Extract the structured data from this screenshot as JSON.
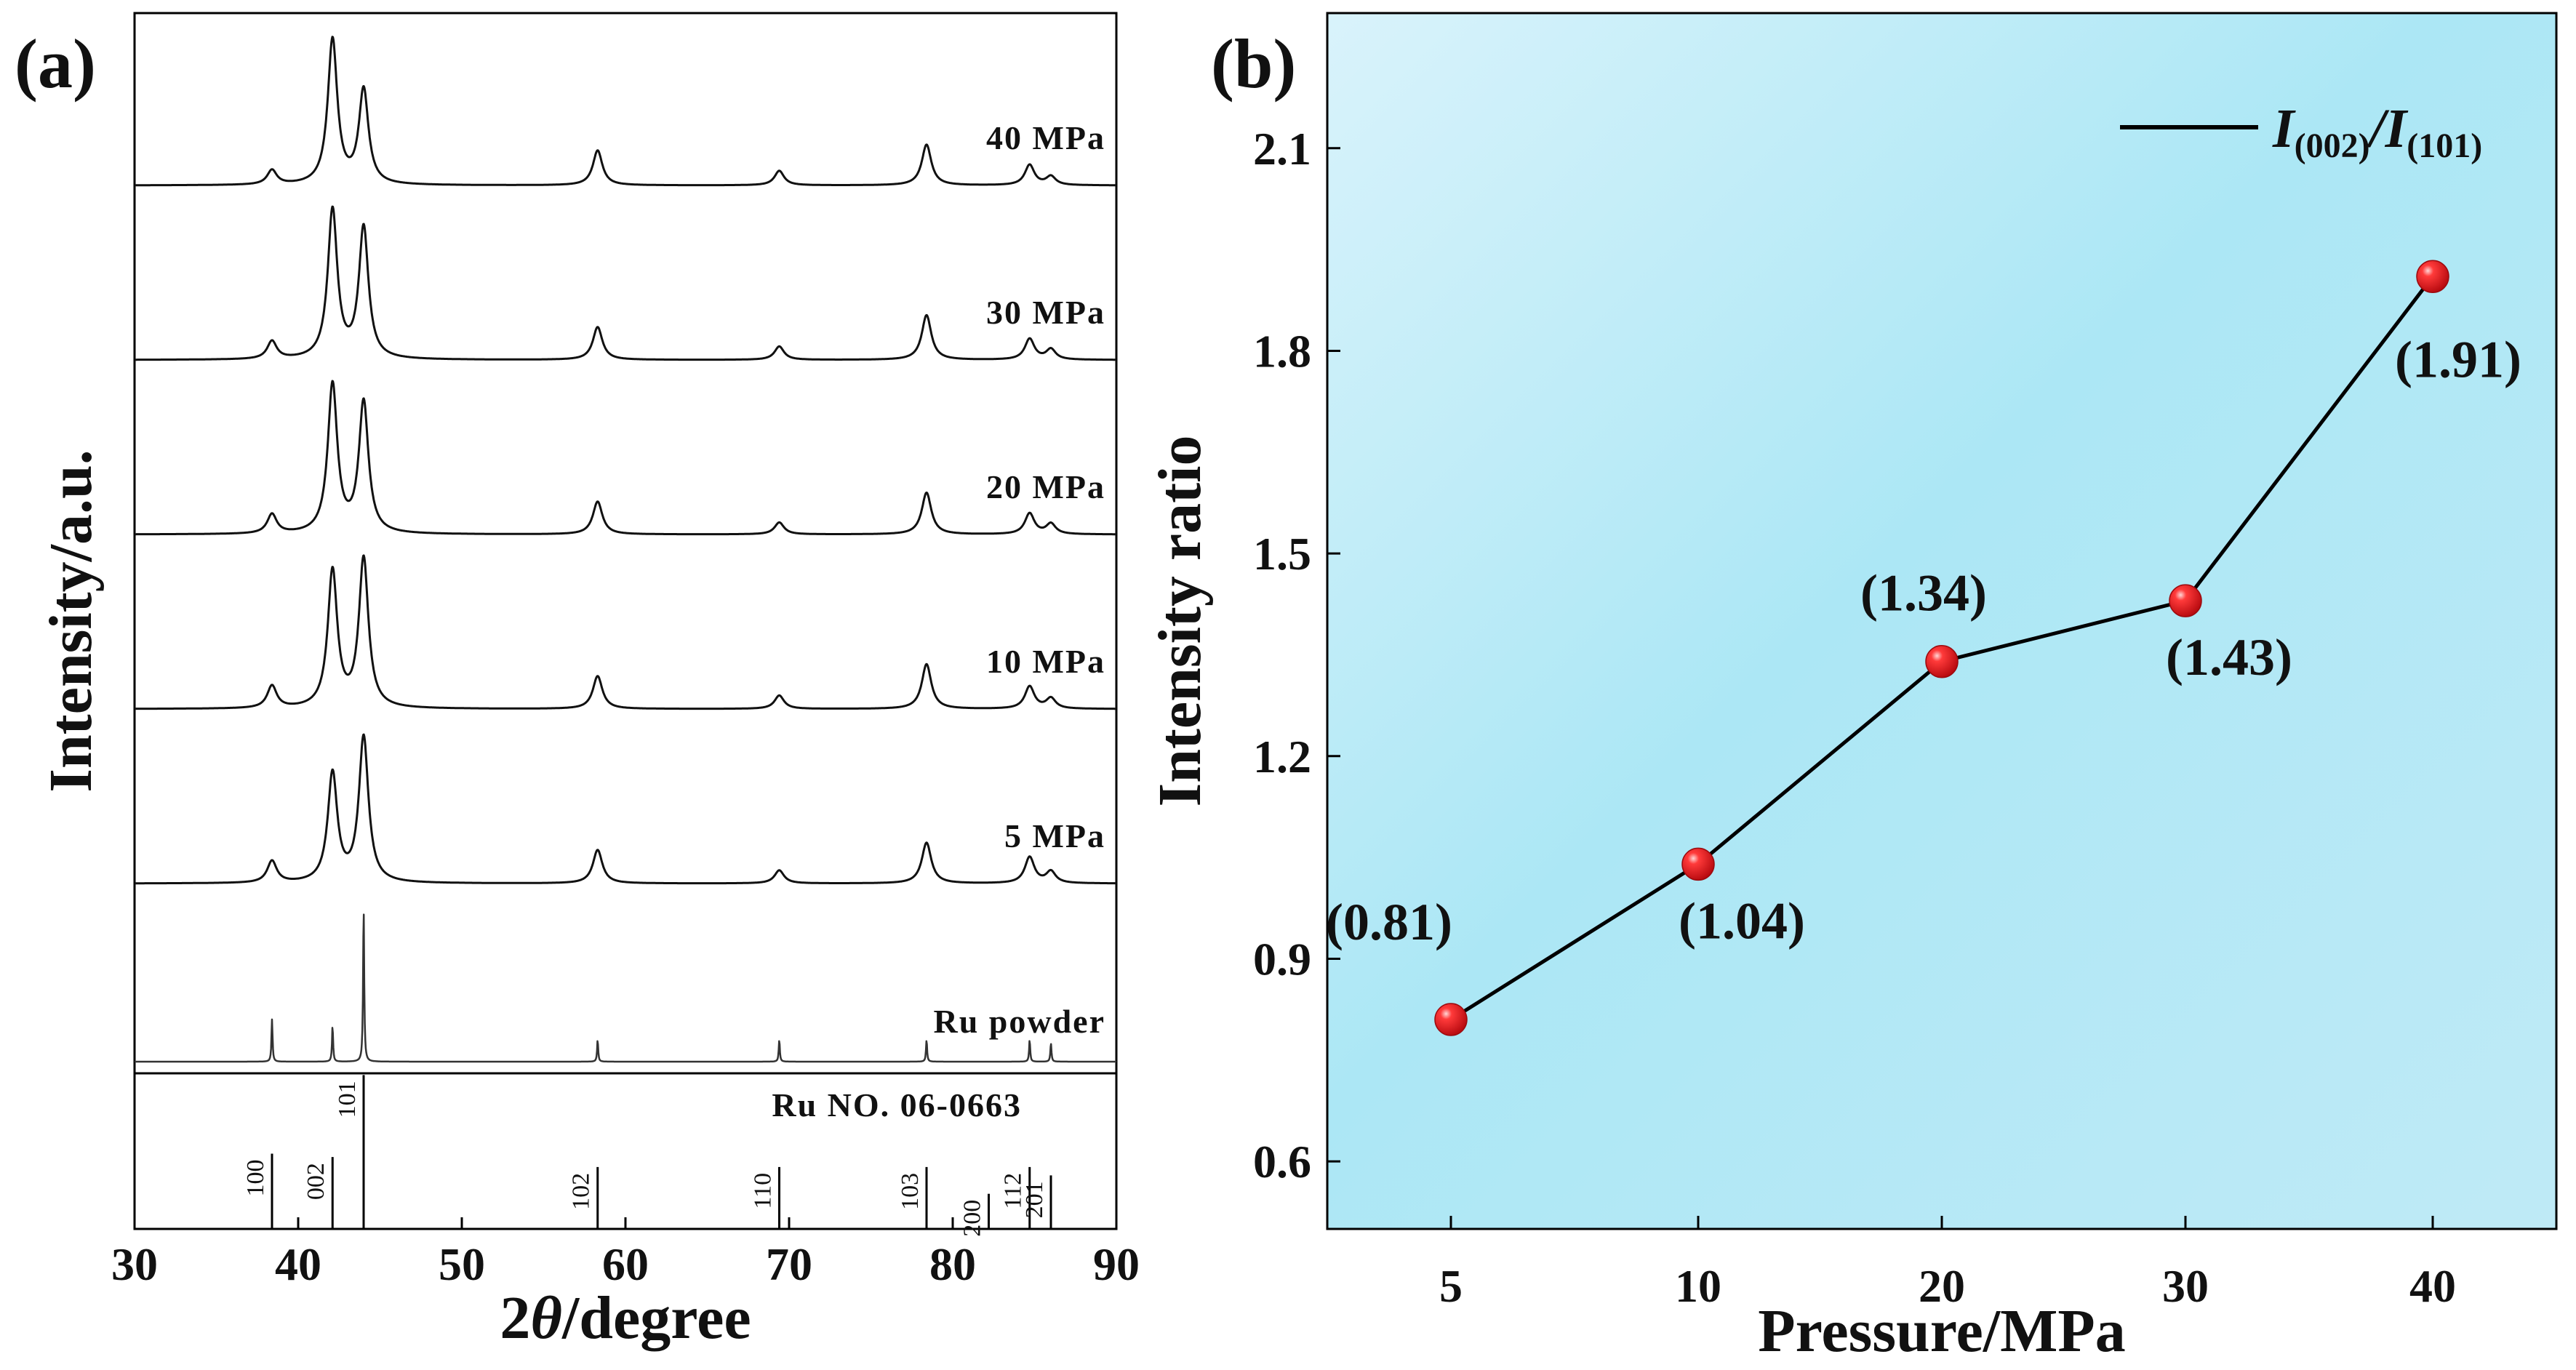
{
  "chart_data": [
    {
      "panel": "(a)",
      "type": "line",
      "xlabel_prefix": "2",
      "xlabel_theta": "θ",
      "xlabel_suffix": "/degree",
      "ylabel": "Intensity/a.u.",
      "xlim": [
        30,
        90
      ],
      "x_ticks": [
        30,
        40,
        50,
        60,
        70,
        80,
        90
      ],
      "grid": false,
      "series": [
        {
          "name": "40 MPa",
          "label": "40 MPa",
          "peaks": [
            [
              38.4,
              0.1
            ],
            [
              42.1,
              1.0
            ],
            [
              44.0,
              0.65
            ],
            [
              58.3,
              0.24
            ],
            [
              69.4,
              0.1
            ],
            [
              78.4,
              0.28
            ],
            [
              84.7,
              0.14
            ],
            [
              86.0,
              0.06
            ]
          ]
        },
        {
          "name": "30 MPa",
          "label": "30 MPa",
          "peaks": [
            [
              38.4,
              0.12
            ],
            [
              42.1,
              1.0
            ],
            [
              44.0,
              0.88
            ],
            [
              58.3,
              0.22
            ],
            [
              69.4,
              0.09
            ],
            [
              78.4,
              0.3
            ],
            [
              84.7,
              0.14
            ],
            [
              86.0,
              0.07
            ]
          ]
        },
        {
          "name": "20 MPa",
          "label": "20 MPa",
          "peaks": [
            [
              38.4,
              0.13
            ],
            [
              42.1,
              1.0
            ],
            [
              44.0,
              0.88
            ],
            [
              58.3,
              0.22
            ],
            [
              69.4,
              0.08
            ],
            [
              78.4,
              0.28
            ],
            [
              84.7,
              0.14
            ],
            [
              86.0,
              0.07
            ]
          ]
        },
        {
          "name": "10 MPa",
          "label": "10 MPa",
          "peaks": [
            [
              38.4,
              0.15
            ],
            [
              42.1,
              0.92
            ],
            [
              44.0,
              1.0
            ],
            [
              58.3,
              0.22
            ],
            [
              69.4,
              0.09
            ],
            [
              78.4,
              0.3
            ],
            [
              84.7,
              0.15
            ],
            [
              86.0,
              0.07
            ]
          ]
        },
        {
          "name": "5 MPa",
          "label": "5 MPa",
          "peaks": [
            [
              38.4,
              0.15
            ],
            [
              42.1,
              0.75
            ],
            [
              44.0,
              1.0
            ],
            [
              58.3,
              0.23
            ],
            [
              69.4,
              0.09
            ],
            [
              78.4,
              0.28
            ],
            [
              84.7,
              0.18
            ],
            [
              86.0,
              0.08
            ]
          ]
        },
        {
          "name": "Ru powder",
          "label": "Ru powder",
          "peaks": [
            [
              38.4,
              0.27
            ],
            [
              42.1,
              0.23
            ],
            [
              44.0,
              1.0
            ],
            [
              58.3,
              0.14
            ],
            [
              69.4,
              0.14
            ],
            [
              78.4,
              0.14
            ],
            [
              84.7,
              0.14
            ],
            [
              86.0,
              0.12
            ]
          ]
        }
      ],
      "reference": {
        "label": "Ru NO. 06-0663",
        "lines": [
          {
            "x": 38.4,
            "hkl": "100",
            "intensity": 0.45
          },
          {
            "x": 42.1,
            "hkl": "002",
            "intensity": 0.43
          },
          {
            "x": 44.0,
            "hkl": "101",
            "intensity": 0.92
          },
          {
            "x": 58.3,
            "hkl": "102",
            "intensity": 0.37
          },
          {
            "x": 69.4,
            "hkl": "110",
            "intensity": 0.37
          },
          {
            "x": 78.4,
            "hkl": "103",
            "intensity": 0.37
          },
          {
            "x": 82.2,
            "hkl": "200",
            "intensity": 0.21
          },
          {
            "x": 84.7,
            "hkl": "112",
            "intensity": 0.37
          },
          {
            "x": 86.0,
            "hkl": "201",
            "intensity": 0.32
          }
        ]
      }
    },
    {
      "panel": "(b)",
      "type": "line",
      "xlabel": "Pressure/MPa",
      "ylabel": "Intensity ratio",
      "categories": [
        "5",
        "10",
        "20",
        "30",
        "40"
      ],
      "values": [
        0.81,
        1.04,
        1.34,
        1.43,
        1.91
      ],
      "point_labels": [
        "(0.81)",
        "(1.04)",
        "(1.34)",
        "(1.43)",
        "(1.91)"
      ],
      "ylim": [
        0.5,
        2.3
      ],
      "y_ticks": [
        "0.6",
        "0.9",
        "1.2",
        "1.5",
        "1.8",
        "2.1"
      ],
      "legend": {
        "symbol": "I",
        "sub1": "(002)",
        "slash": "/",
        "sub2": "(101)",
        "position": "top-right"
      },
      "colors": {
        "point": "#e8141c",
        "line": "#000000",
        "bg_light": "#d9f3fb",
        "bg_mid": "#ace7f5",
        "bg_dark": "#a6e3f3"
      },
      "grid": false
    }
  ]
}
